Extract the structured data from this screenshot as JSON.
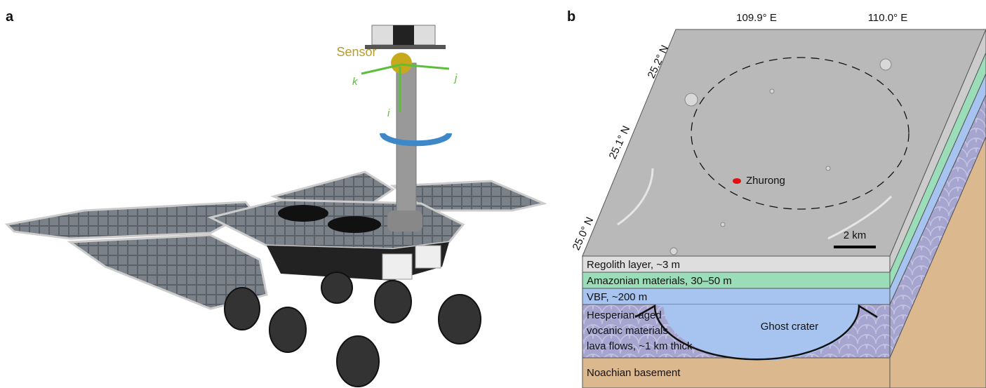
{
  "panel_a": {
    "label": "a",
    "sensor": "Sensor",
    "axes": [
      "k",
      "j",
      "i"
    ]
  },
  "panel_b": {
    "label": "b",
    "longitudes": [
      "109.9° E",
      "110.0° E"
    ],
    "latitudes": [
      "25.2° N",
      "25.1° N",
      "25.0° N"
    ],
    "site": "Zhurong",
    "scale": "2 km",
    "layers": [
      "Regolith layer, ~3 m",
      "Amazonian materials, 30–50 m",
      "VBF, ~200 m"
    ],
    "hesperian": [
      "Hesperian-aged",
      "vocanic materials",
      "lava flows, ~1 km thick"
    ],
    "crater": "Ghost crater",
    "basement": "Noachian basement"
  }
}
